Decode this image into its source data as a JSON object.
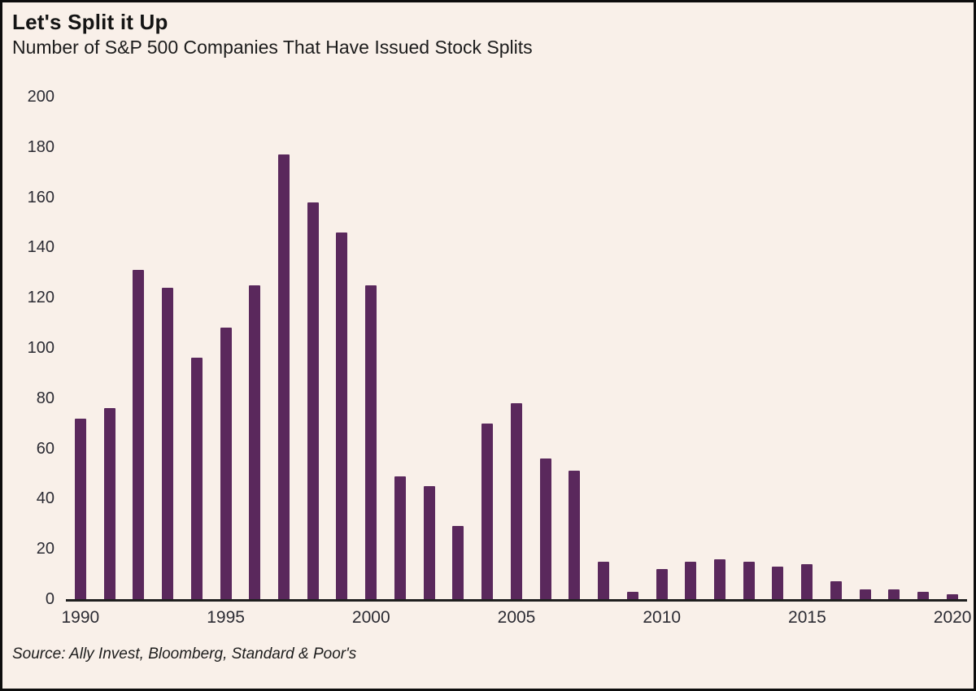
{
  "header": {
    "title": "Let's Split it Up",
    "subtitle": "Number of S&P 500 Companies That Have Issued Stock Splits"
  },
  "footer": {
    "source": "Source: Ally Invest, Bloomberg, Standard & Poor's"
  },
  "colors": {
    "background": "#f9f0e9",
    "bar": "#5a285c",
    "axis": "#1f1f1f",
    "text": "#1c1c1c",
    "frame_border": "#0d0d0d"
  },
  "chart_data": {
    "type": "bar",
    "title": "Let's Split it Up",
    "subtitle": "Number of S&P 500 Companies That Have Issued Stock Splits",
    "source": "Source: Ally Invest, Bloomberg, Standard & Poor's",
    "categories": [
      1990,
      1991,
      1992,
      1993,
      1994,
      1995,
      1996,
      1997,
      1998,
      1999,
      2000,
      2001,
      2002,
      2003,
      2004,
      2005,
      2006,
      2007,
      2008,
      2009,
      2010,
      2011,
      2012,
      2013,
      2014,
      2015,
      2016,
      2017,
      2018,
      2019,
      2020
    ],
    "values": [
      72,
      76,
      131,
      124,
      96,
      108,
      125,
      177,
      158,
      146,
      125,
      49,
      45,
      29,
      70,
      78,
      56,
      51,
      15,
      3,
      12,
      15,
      16,
      15,
      13,
      14,
      7,
      4,
      4,
      3,
      2
    ],
    "xlabel": "",
    "ylabel": "",
    "ylim": [
      0,
      200
    ],
    "yticks": [
      0,
      20,
      40,
      60,
      80,
      100,
      120,
      140,
      160,
      180,
      200
    ],
    "xticks": [
      1990,
      1995,
      2000,
      2005,
      2010,
      2015,
      2020
    ],
    "grid": false,
    "legend": false,
    "bar_color": "#5a285c"
  }
}
